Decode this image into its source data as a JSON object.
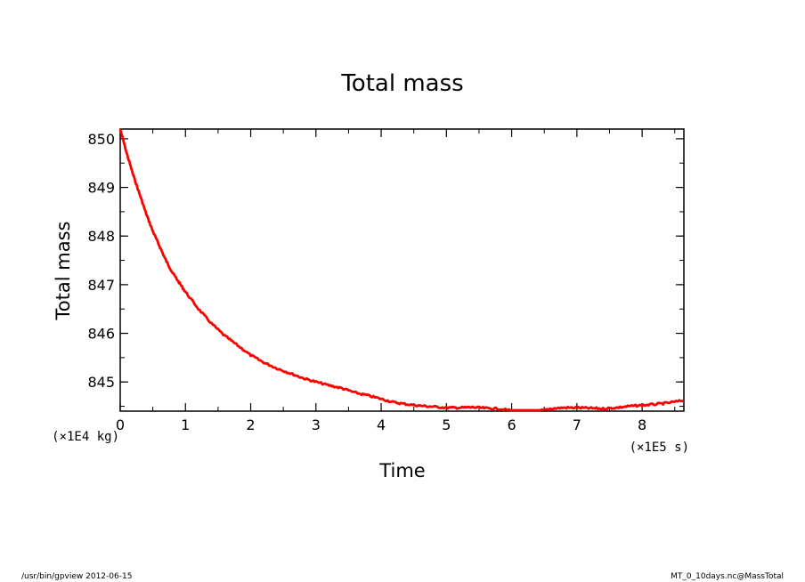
{
  "chart_data": {
    "type": "line",
    "title": "Total mass",
    "xlabel": "Time",
    "ylabel": "Total mass",
    "x_unit_label": "(×1E5 s)",
    "y_unit_label": "(×1E4 kg)",
    "xlim": [
      0,
      8.64
    ],
    "ylim": [
      844.4,
      850.2
    ],
    "x_ticks": [
      0,
      1,
      2,
      3,
      4,
      5,
      6,
      7,
      8
    ],
    "y_ticks": [
      845,
      846,
      847,
      848,
      849,
      850
    ],
    "grid": false,
    "legend": "none",
    "series": [
      {
        "color": "#ff0000",
        "x": [
          0,
          0.1,
          0.2,
          0.3,
          0.4,
          0.5,
          0.6,
          0.7,
          0.8,
          0.9,
          1.0,
          1.2,
          1.4,
          1.6,
          1.8,
          2.0,
          2.2,
          2.4,
          2.6,
          2.8,
          3.0,
          3.2,
          3.4,
          3.6,
          3.8,
          4.0,
          4.2,
          4.4,
          4.6,
          4.8,
          5.0,
          5.2,
          5.4,
          5.6,
          5.8,
          6.0,
          6.2,
          6.4,
          6.6,
          6.8,
          7.0,
          7.2,
          7.4,
          7.6,
          7.8,
          8.0,
          8.2,
          8.4,
          8.64
        ],
        "y": [
          850.2,
          849.7,
          849.25,
          848.85,
          848.45,
          848.1,
          847.8,
          847.5,
          847.25,
          847.05,
          846.85,
          846.5,
          846.2,
          845.95,
          845.75,
          845.55,
          845.4,
          845.28,
          845.18,
          845.08,
          845.0,
          844.93,
          844.87,
          844.78,
          844.72,
          844.65,
          844.58,
          844.54,
          844.51,
          844.49,
          844.47,
          844.47,
          844.48,
          844.46,
          844.45,
          844.41,
          844.38,
          844.4,
          844.45,
          844.47,
          844.47,
          844.46,
          844.45,
          844.47,
          844.5,
          844.52,
          844.54,
          844.57,
          844.62
        ]
      }
    ]
  },
  "footer": {
    "left": "/usr/bin/gpview  2012-06-15",
    "right": "MT_0_10days.nc@MassTotal"
  }
}
